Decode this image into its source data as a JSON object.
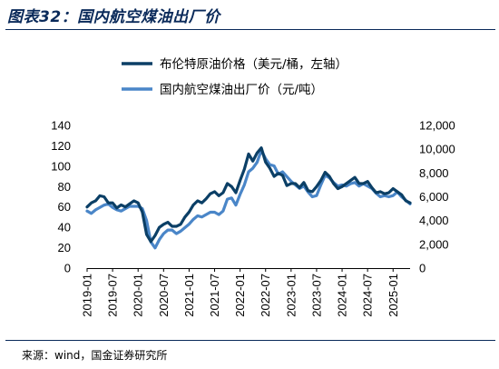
{
  "header": {
    "title": "图表32：国内航空煤油出厂价"
  },
  "footer": {
    "source": "来源：wind，国金证券研究所"
  },
  "colors": {
    "brent": "#0b3f66",
    "jet": "#4a86c8",
    "title": "#0a2a5a"
  },
  "chart_data": {
    "type": "line",
    "title": "图表32：国内航空煤油出厂价",
    "xlabel": "",
    "ylabel_left": "",
    "ylabel_right": "",
    "x_tick_labels": [
      "2019-01",
      "2019-07",
      "2020-01",
      "2020-07",
      "2021-01",
      "2021-07",
      "2022-01",
      "2022-07",
      "2023-01",
      "2023-07",
      "2024-01",
      "2024-07",
      "2025-01"
    ],
    "y_left_ticks": [
      "0",
      "20",
      "40",
      "60",
      "80",
      "100",
      "120",
      "140"
    ],
    "y_right_ticks": [
      "0",
      "2,000",
      "4,000",
      "6,000",
      "8,000",
      "10,000",
      "12,000"
    ],
    "y_left_range": [
      0,
      140
    ],
    "y_right_range": [
      0,
      12000
    ],
    "legend_position": "top-right",
    "grid": false,
    "series": [
      {
        "name": "布伦特原油价格（美元/桶，左轴）",
        "axis": "left",
        "x": [
          "2019-01",
          "2019-02",
          "2019-03",
          "2019-04",
          "2019-05",
          "2019-06",
          "2019-07",
          "2019-08",
          "2019-09",
          "2019-10",
          "2019-11",
          "2019-12",
          "2020-01",
          "2020-02",
          "2020-03",
          "2020-04",
          "2020-05",
          "2020-06",
          "2020-07",
          "2020-08",
          "2020-09",
          "2020-10",
          "2020-11",
          "2020-12",
          "2021-01",
          "2021-02",
          "2021-03",
          "2021-04",
          "2021-05",
          "2021-06",
          "2021-07",
          "2021-08",
          "2021-09",
          "2021-10",
          "2021-11",
          "2021-12",
          "2022-01",
          "2022-02",
          "2022-03",
          "2022-04",
          "2022-05",
          "2022-06",
          "2022-07",
          "2022-08",
          "2022-09",
          "2022-10",
          "2022-11",
          "2022-12",
          "2023-01",
          "2023-02",
          "2023-03",
          "2023-04",
          "2023-05",
          "2023-06",
          "2023-07",
          "2023-08",
          "2023-09",
          "2023-10",
          "2023-11",
          "2023-12",
          "2024-01",
          "2024-02",
          "2024-03",
          "2024-04",
          "2024-05",
          "2024-06",
          "2024-07",
          "2024-08",
          "2024-09",
          "2024-10",
          "2024-11",
          "2024-12",
          "2025-01",
          "2025-02",
          "2025-03",
          "2025-04",
          "2025-05"
        ],
        "values": [
          60,
          64,
          66,
          71,
          70,
          64,
          64,
          59,
          62,
          60,
          63,
          66,
          64,
          55,
          33,
          26,
          32,
          40,
          43,
          45,
          41,
          41,
          43,
          50,
          55,
          62,
          66,
          64,
          68,
          73,
          75,
          71,
          74,
          83,
          80,
          74,
          86,
          97,
          112,
          105,
          113,
          118,
          104,
          98,
          90,
          93,
          91,
          81,
          83,
          83,
          79,
          84,
          76,
          75,
          80,
          86,
          94,
          90,
          83,
          78,
          80,
          83,
          86,
          89,
          83,
          83,
          85,
          79,
          74,
          75,
          73,
          74,
          78,
          75,
          72,
          66,
          64
        ]
      },
      {
        "name": "国内航空煤油出厂价（元/吨）",
        "axis": "right",
        "x": [
          "2019-01",
          "2019-02",
          "2019-03",
          "2019-04",
          "2019-05",
          "2019-06",
          "2019-07",
          "2019-08",
          "2019-09",
          "2019-10",
          "2019-11",
          "2019-12",
          "2020-01",
          "2020-02",
          "2020-03",
          "2020-04",
          "2020-05",
          "2020-06",
          "2020-07",
          "2020-08",
          "2020-09",
          "2020-10",
          "2020-11",
          "2020-12",
          "2021-01",
          "2021-02",
          "2021-03",
          "2021-04",
          "2021-05",
          "2021-06",
          "2021-07",
          "2021-08",
          "2021-09",
          "2021-10",
          "2021-11",
          "2021-12",
          "2022-01",
          "2022-02",
          "2022-03",
          "2022-04",
          "2022-05",
          "2022-06",
          "2022-07",
          "2022-08",
          "2022-09",
          "2022-10",
          "2022-11",
          "2022-12",
          "2023-01",
          "2023-02",
          "2023-03",
          "2023-04",
          "2023-05",
          "2023-06",
          "2023-07",
          "2023-08",
          "2023-09",
          "2023-10",
          "2023-11",
          "2023-12",
          "2024-01",
          "2024-02",
          "2024-03",
          "2024-04",
          "2024-05",
          "2024-06",
          "2024-07",
          "2024-08",
          "2024-09",
          "2024-10",
          "2024-11",
          "2024-12",
          "2025-01",
          "2025-02",
          "2025-03",
          "2025-04",
          "2025-05"
        ],
        "values": [
          4800,
          4600,
          4900,
          5100,
          5300,
          5400,
          5100,
          4900,
          4800,
          5000,
          5200,
          5200,
          5200,
          5000,
          4000,
          2200,
          1700,
          2400,
          2900,
          3200,
          3200,
          2900,
          3100,
          3400,
          3700,
          4100,
          4400,
          4300,
          4500,
          4700,
          4700,
          4500,
          4800,
          5800,
          5900,
          5300,
          6200,
          7000,
          8100,
          8400,
          8900,
          9900,
          9200,
          8700,
          8600,
          7900,
          8100,
          7700,
          7300,
          7000,
          6700,
          6900,
          6400,
          6000,
          6100,
          7000,
          7800,
          7600,
          7200,
          6900,
          7000,
          6900,
          7100,
          7200,
          6900,
          7100,
          6900,
          6700,
          6300,
          6000,
          6100,
          6000,
          6100,
          6400,
          6000,
          5700,
          5400
        ]
      }
    ]
  }
}
